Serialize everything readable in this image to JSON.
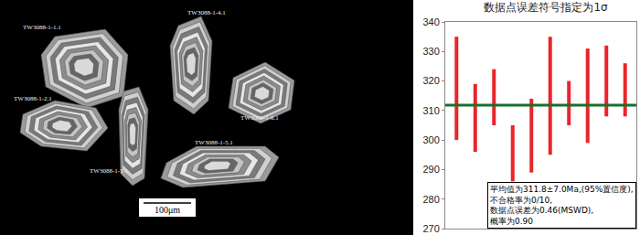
{
  "image": {
    "labels": [
      "TW3088-1-1.1",
      "TW3088-1-4.1",
      "TW3088-1-2.1",
      "TW3088-1-6.1",
      "TW3088-1-3.1",
      "TW3088-1-5.1"
    ],
    "scale_bar": "100μm"
  },
  "chart_data": {
    "type": "error_bar",
    "title": "数据点误差符号指定为1σ",
    "categories": [
      null,
      null,
      null,
      null,
      null,
      null,
      null,
      null,
      null,
      null
    ],
    "values": [
      317.5,
      307.5,
      314.5,
      295.5,
      301.5,
      315,
      312.5,
      315,
      320,
      317
    ],
    "errors": [
      17.5,
      11.5,
      9.5,
      9.5,
      12.5,
      20,
      7.5,
      16,
      12,
      9
    ],
    "color": "#e8262a",
    "mean": {
      "value": 311.8,
      "color": "#17702a"
    },
    "ylim": [
      270,
      340
    ],
    "yticks": [
      270,
      280,
      290,
      300,
      310,
      320,
      330,
      340
    ],
    "tick_labels": "y",
    "grid": false,
    "annotation": [
      "平均值为311.8±7.0Ma,(95%置信度),",
      "不合格率为0/10,",
      "数据点误差为0.46(MSWD),",
      "概率为0.90"
    ]
  }
}
